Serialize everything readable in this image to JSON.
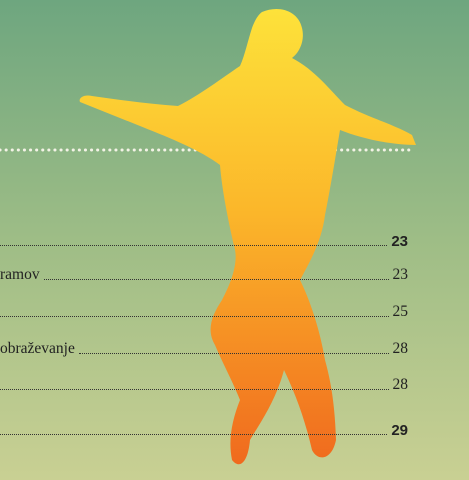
{
  "toc": {
    "entries": [
      {
        "page": 23,
        "bold": true
      },
      {
        "text": "ramov",
        "page": 23
      },
      {
        "page": 25
      },
      {
        "text": "obraževanje",
        "page": 28
      },
      {
        "page": 28
      },
      {
        "page": 29,
        "bold": true
      }
    ]
  }
}
